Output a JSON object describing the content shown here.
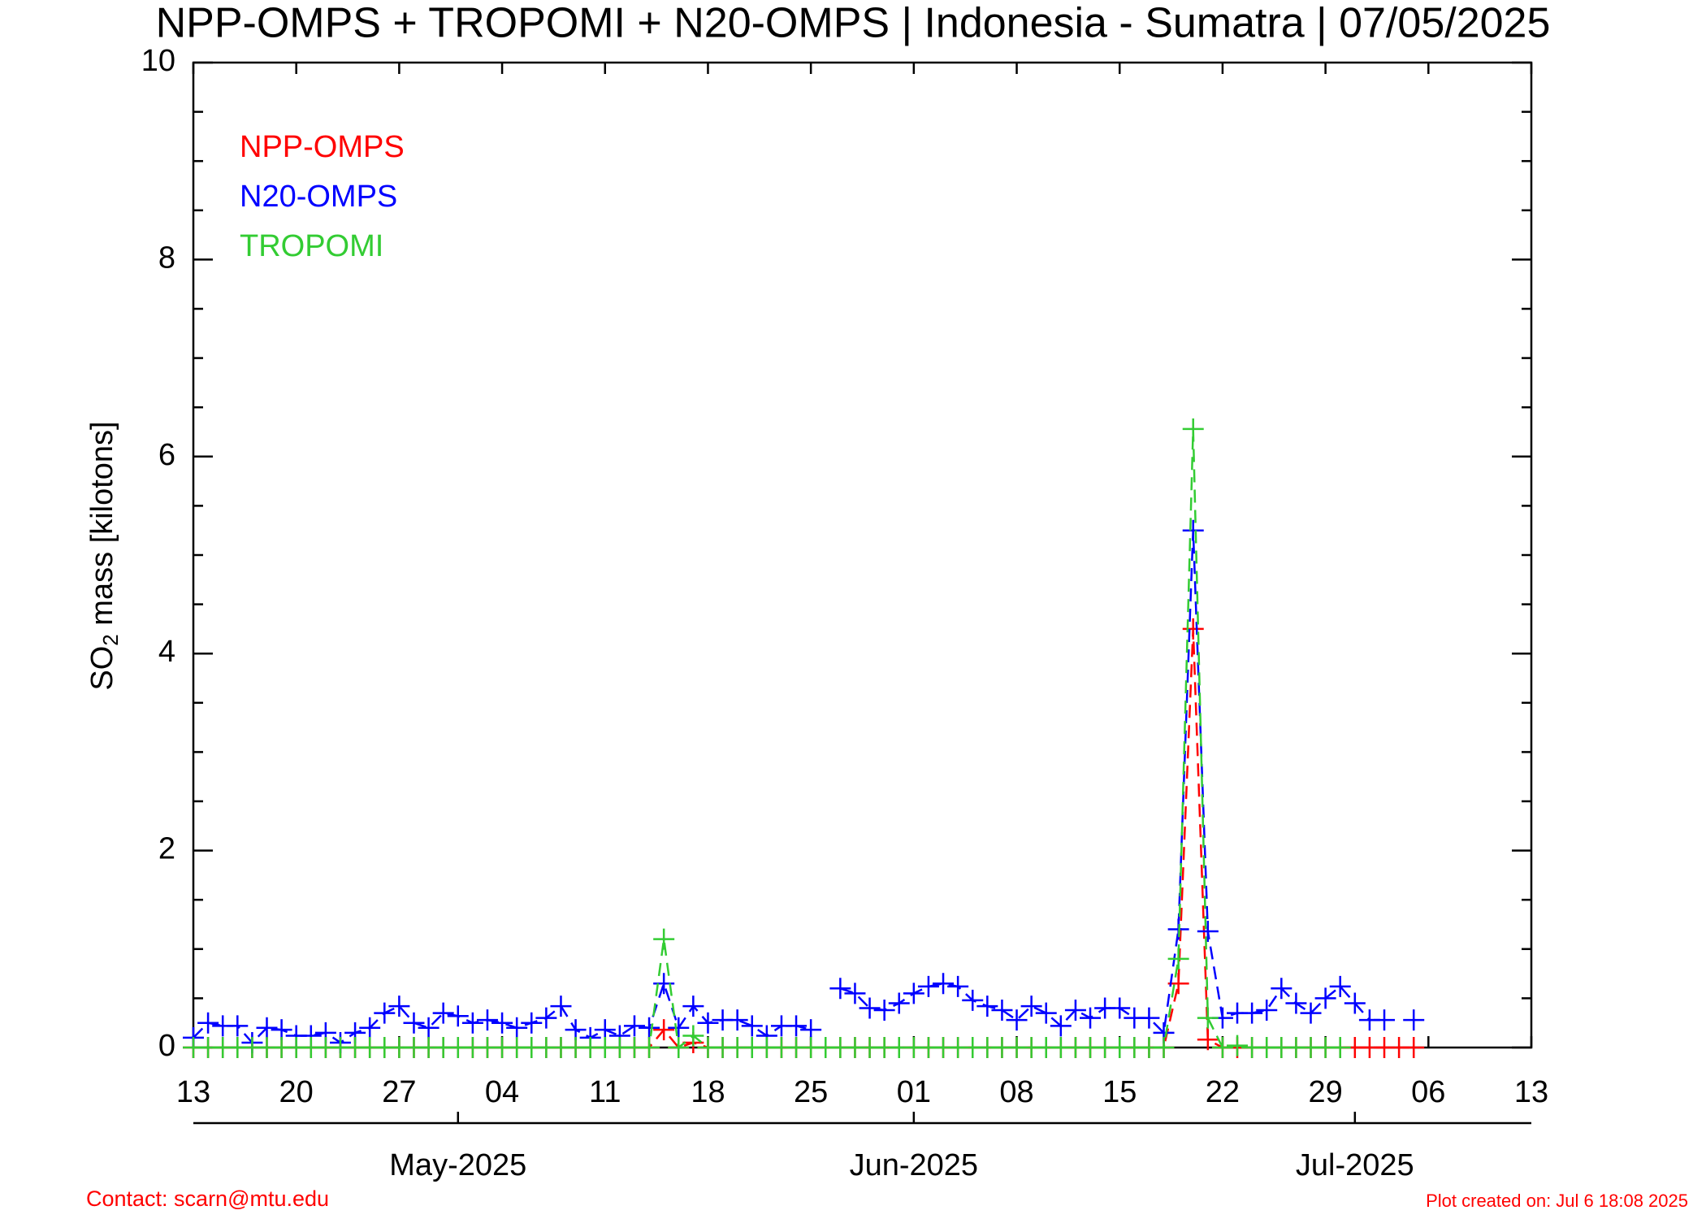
{
  "chart_data": {
    "type": "line",
    "title": "NPP-OMPS + TROPOMI + N20-OMPS | Indonesia - Sumatra | 07/05/2025",
    "y_label_parts": [
      "SO",
      "2",
      " mass [kilotons]"
    ],
    "footer_left": "Contact: scarn@mtu.edu",
    "footer_right": "Plot created on: Jul  6 18:08 2025",
    "x": [
      "2025-04-13",
      "2025-04-14",
      "2025-04-15",
      "2025-04-16",
      "2025-04-17",
      "2025-04-18",
      "2025-04-19",
      "2025-04-20",
      "2025-04-21",
      "2025-04-22",
      "2025-04-23",
      "2025-04-24",
      "2025-04-25",
      "2025-04-26",
      "2025-04-27",
      "2025-04-28",
      "2025-04-29",
      "2025-04-30",
      "2025-05-01",
      "2025-05-02",
      "2025-05-03",
      "2025-05-04",
      "2025-05-05",
      "2025-05-06",
      "2025-05-07",
      "2025-05-08",
      "2025-05-09",
      "2025-05-10",
      "2025-05-11",
      "2025-05-12",
      "2025-05-13",
      "2025-05-14",
      "2025-05-15",
      "2025-05-16",
      "2025-05-17",
      "2025-05-18",
      "2025-05-19",
      "2025-05-20",
      "2025-05-21",
      "2025-05-22",
      "2025-05-23",
      "2025-05-24",
      "2025-05-25",
      "2025-05-26",
      "2025-05-27",
      "2025-05-28",
      "2025-05-29",
      "2025-05-30",
      "2025-05-31",
      "2025-06-01",
      "2025-06-02",
      "2025-06-03",
      "2025-06-04",
      "2025-06-05",
      "2025-06-06",
      "2025-06-07",
      "2025-06-08",
      "2025-06-09",
      "2025-06-10",
      "2025-06-11",
      "2025-06-12",
      "2025-06-13",
      "2025-06-14",
      "2025-06-15",
      "2025-06-16",
      "2025-06-17",
      "2025-06-18",
      "2025-06-19",
      "2025-06-20",
      "2025-06-21",
      "2025-06-22",
      "2025-06-23",
      "2025-06-24",
      "2025-06-25",
      "2025-06-26",
      "2025-06-27",
      "2025-06-28",
      "2025-06-29",
      "2025-06-30",
      "2025-07-01",
      "2025-07-02",
      "2025-07-03",
      "2025-07-04",
      "2025-07-05"
    ],
    "series": [
      {
        "name": "NPP-OMPS",
        "color": "#ff0000",
        "values": [
          0,
          0,
          0,
          0,
          0,
          0,
          0,
          0,
          0,
          0,
          0,
          0,
          0,
          0,
          0,
          0,
          0,
          0,
          0,
          0,
          0,
          0,
          0,
          0,
          0,
          0,
          0,
          0,
          0,
          0,
          0,
          0,
          0.18,
          0,
          0.05,
          0,
          0,
          0,
          0,
          0,
          0,
          0,
          0,
          0,
          0,
          0,
          0,
          0,
          0,
          0,
          0,
          0,
          0,
          0,
          0,
          0,
          0,
          0,
          0,
          0,
          0,
          0,
          0,
          0,
          0,
          0,
          0,
          0.65,
          4.25,
          0.08,
          0,
          0,
          0,
          0,
          0,
          0,
          0,
          0,
          0,
          0,
          0,
          0,
          0,
          0
        ]
      },
      {
        "name": "N20-OMPS",
        "color": "#0000ff",
        "values": [
          0.1,
          0.25,
          0.22,
          0.22,
          0.05,
          0.2,
          0.18,
          0.12,
          0.12,
          0.15,
          0.05,
          0.15,
          0.2,
          0.35,
          0.42,
          0.25,
          0.2,
          0.35,
          0.32,
          0.25,
          0.28,
          0.25,
          0.2,
          0.25,
          0.3,
          0.42,
          0.18,
          0.1,
          0.18,
          0.12,
          0.22,
          0.2,
          0.65,
          0.2,
          0.42,
          0.25,
          0.28,
          0.28,
          0.22,
          0.12,
          0.22,
          0.22,
          0.18,
          null,
          0.6,
          0.55,
          0.4,
          0.38,
          0.45,
          0.55,
          0.62,
          0.65,
          0.62,
          0.48,
          0.42,
          0.38,
          0.28,
          0.42,
          0.35,
          0.22,
          0.38,
          0.3,
          0.4,
          0.4,
          0.3,
          0.3,
          0.15,
          1.2,
          5.25,
          1.18,
          0.3,
          0.35,
          0.35,
          0.38,
          0.6,
          0.45,
          0.35,
          0.5,
          0.62,
          0.45,
          0.28,
          0.28,
          null,
          0.28
        ]
      },
      {
        "name": "TROPOMI",
        "color": "#33cc33",
        "values": [
          0,
          0,
          0,
          0,
          0,
          0,
          0,
          0,
          0,
          0,
          0,
          0,
          0,
          0,
          0,
          0,
          0,
          0,
          0,
          0,
          0,
          0,
          0,
          0,
          0,
          0,
          0,
          0,
          0,
          0,
          0,
          0,
          1.1,
          0,
          0.12,
          0,
          0,
          0,
          0,
          0,
          0,
          0,
          0,
          0,
          0,
          0,
          0,
          0,
          0,
          0,
          0,
          0,
          0,
          0,
          0,
          0,
          0,
          0,
          0,
          0,
          0,
          0,
          0,
          0,
          0,
          0,
          0,
          0.9,
          6.28,
          0.3,
          0,
          0.02,
          0,
          0,
          0,
          0,
          0,
          0,
          0,
          null,
          null,
          null,
          null,
          null
        ]
      }
    ],
    "xlim": [
      "2025-04-13",
      "2025-07-13"
    ],
    "xticks": [
      {
        "value": "2025-04-13",
        "label": "13"
      },
      {
        "value": "2025-04-20",
        "label": "20"
      },
      {
        "value": "2025-04-27",
        "label": "27"
      },
      {
        "value": "2025-05-04",
        "label": "04"
      },
      {
        "value": "2025-05-11",
        "label": "11"
      },
      {
        "value": "2025-05-18",
        "label": "18"
      },
      {
        "value": "2025-05-25",
        "label": "25"
      },
      {
        "value": "2025-06-01",
        "label": "01"
      },
      {
        "value": "2025-06-08",
        "label": "08"
      },
      {
        "value": "2025-06-15",
        "label": "15"
      },
      {
        "value": "2025-06-22",
        "label": "22"
      },
      {
        "value": "2025-06-29",
        "label": "29"
      },
      {
        "value": "2025-07-06",
        "label": "06"
      },
      {
        "value": "2025-07-13",
        "label": "13"
      }
    ],
    "month_ticks": [
      {
        "value": "2025-05-01",
        "label": "May-2025"
      },
      {
        "value": "2025-06-01",
        "label": "Jun-2025"
      },
      {
        "value": "2025-07-01",
        "label": "Jul-2025"
      }
    ],
    "ylim": [
      0,
      10
    ],
    "yticks": [
      0,
      2,
      4,
      6,
      8,
      10
    ],
    "y_minor_ticks": [
      0.5,
      1,
      1.5,
      2.5,
      3,
      3.5,
      4.5,
      5,
      5.5,
      6.5,
      7,
      7.5,
      8.5,
      9,
      9.5
    ],
    "legend": "upper left",
    "grid": false
  }
}
